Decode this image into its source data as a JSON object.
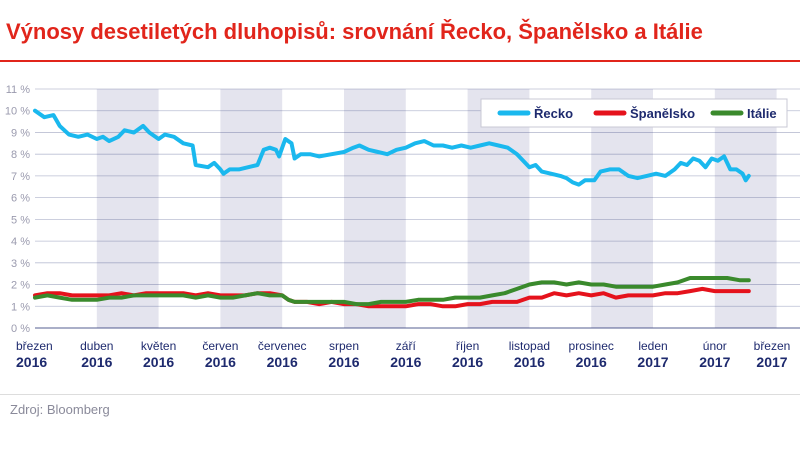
{
  "title": "Výnosy desetiletých dluhopisů: srovnání Řecko, Španělsko a Itálie",
  "source": "Zdroj: Bloomberg",
  "colors": {
    "title": "#e1251b",
    "greece": "#1ab8ee",
    "spain": "#e5121c",
    "italy": "#3a8a2c",
    "axis_text": "#1e2a6e",
    "band": "#e4e4ee"
  },
  "chart_data": {
    "type": "line",
    "title": "Výnosy desetiletých dluhopisů: srovnání Řecko, Španělsko a Itálie",
    "xlabel": "",
    "ylabel": "",
    "ylim": [
      0,
      11
    ],
    "yticks": [
      "0 %",
      "1 %",
      "2 %",
      "3 %",
      "4 %",
      "5 %",
      "6 %",
      "7 %",
      "8 %",
      "9 %",
      "10 %",
      "11 %"
    ],
    "xlim": [
      0,
      12.9
    ],
    "x_unit": "months since start of March 2016",
    "months": [
      {
        "month": "březen",
        "year": "2016"
      },
      {
        "month": "duben",
        "year": "2016"
      },
      {
        "month": "květen",
        "year": "2016"
      },
      {
        "month": "červen",
        "year": "2016"
      },
      {
        "month": "červenec",
        "year": "2016"
      },
      {
        "month": "srpen",
        "year": "2016"
      },
      {
        "month": "září",
        "year": "2016"
      },
      {
        "month": "říjen",
        "year": "2016"
      },
      {
        "month": "listopad",
        "year": "2016"
      },
      {
        "month": "prosinec",
        "year": "2016"
      },
      {
        "month": "leden",
        "year": "2017"
      },
      {
        "month": "únor",
        "year": "2017"
      },
      {
        "month": "březen",
        "year": "2017"
      }
    ],
    "grid": true,
    "legend_position": "top-right",
    "series": [
      {
        "name": "Řecko",
        "color": "#1ab8ee",
        "points": [
          [
            0.0,
            10.0
          ],
          [
            0.15,
            9.7
          ],
          [
            0.3,
            9.8
          ],
          [
            0.4,
            9.3
          ],
          [
            0.55,
            8.9
          ],
          [
            0.7,
            8.8
          ],
          [
            0.85,
            8.9
          ],
          [
            1.0,
            8.7
          ],
          [
            1.1,
            8.8
          ],
          [
            1.2,
            8.6
          ],
          [
            1.35,
            8.8
          ],
          [
            1.45,
            9.1
          ],
          [
            1.6,
            9.0
          ],
          [
            1.75,
            9.3
          ],
          [
            1.85,
            9.0
          ],
          [
            2.0,
            8.7
          ],
          [
            2.1,
            8.9
          ],
          [
            2.25,
            8.8
          ],
          [
            2.4,
            8.5
          ],
          [
            2.55,
            8.4
          ],
          [
            2.6,
            7.5
          ],
          [
            2.8,
            7.4
          ],
          [
            2.9,
            7.6
          ],
          [
            3.0,
            7.3
          ],
          [
            3.05,
            7.1
          ],
          [
            3.15,
            7.3
          ],
          [
            3.3,
            7.3
          ],
          [
            3.45,
            7.4
          ],
          [
            3.6,
            7.5
          ],
          [
            3.7,
            8.2
          ],
          [
            3.8,
            8.3
          ],
          [
            3.9,
            8.2
          ],
          [
            3.95,
            7.9
          ],
          [
            4.05,
            8.7
          ],
          [
            4.15,
            8.5
          ],
          [
            4.2,
            7.8
          ],
          [
            4.3,
            8.0
          ],
          [
            4.45,
            8.0
          ],
          [
            4.6,
            7.9
          ],
          [
            4.8,
            8.0
          ],
          [
            5.0,
            8.1
          ],
          [
            5.15,
            8.3
          ],
          [
            5.25,
            8.4
          ],
          [
            5.4,
            8.2
          ],
          [
            5.55,
            8.1
          ],
          [
            5.7,
            8.0
          ],
          [
            5.85,
            8.2
          ],
          [
            6.0,
            8.3
          ],
          [
            6.15,
            8.5
          ],
          [
            6.3,
            8.6
          ],
          [
            6.45,
            8.4
          ],
          [
            6.6,
            8.4
          ],
          [
            6.75,
            8.3
          ],
          [
            6.9,
            8.4
          ],
          [
            7.05,
            8.3
          ],
          [
            7.2,
            8.4
          ],
          [
            7.35,
            8.5
          ],
          [
            7.5,
            8.4
          ],
          [
            7.65,
            8.3
          ],
          [
            7.8,
            8.0
          ],
          [
            7.9,
            7.7
          ],
          [
            8.0,
            7.4
          ],
          [
            8.1,
            7.5
          ],
          [
            8.2,
            7.2
          ],
          [
            8.35,
            7.1
          ],
          [
            8.5,
            7.0
          ],
          [
            8.6,
            6.9
          ],
          [
            8.7,
            6.7
          ],
          [
            8.8,
            6.6
          ],
          [
            8.9,
            6.8
          ],
          [
            9.05,
            6.8
          ],
          [
            9.15,
            7.2
          ],
          [
            9.3,
            7.3
          ],
          [
            9.45,
            7.3
          ],
          [
            9.6,
            7.0
          ],
          [
            9.75,
            6.9
          ],
          [
            9.9,
            7.0
          ],
          [
            10.05,
            7.1
          ],
          [
            10.2,
            7.0
          ],
          [
            10.35,
            7.3
          ],
          [
            10.45,
            7.6
          ],
          [
            10.55,
            7.5
          ],
          [
            10.65,
            7.8
          ],
          [
            10.75,
            7.7
          ],
          [
            10.85,
            7.4
          ],
          [
            10.95,
            7.8
          ],
          [
            11.05,
            7.7
          ],
          [
            11.15,
            7.9
          ],
          [
            11.25,
            7.3
          ],
          [
            11.35,
            7.3
          ],
          [
            11.45,
            7.1
          ],
          [
            11.5,
            6.8
          ],
          [
            11.55,
            7.0
          ]
        ]
      },
      {
        "name": "Španělsko",
        "color": "#e5121c",
        "points": [
          [
            0.0,
            1.5
          ],
          [
            0.2,
            1.6
          ],
          [
            0.4,
            1.6
          ],
          [
            0.6,
            1.5
          ],
          [
            0.8,
            1.5
          ],
          [
            1.0,
            1.5
          ],
          [
            1.2,
            1.5
          ],
          [
            1.4,
            1.6
          ],
          [
            1.6,
            1.5
          ],
          [
            1.8,
            1.6
          ],
          [
            2.0,
            1.6
          ],
          [
            2.2,
            1.6
          ],
          [
            2.4,
            1.6
          ],
          [
            2.6,
            1.5
          ],
          [
            2.8,
            1.6
          ],
          [
            3.0,
            1.5
          ],
          [
            3.2,
            1.5
          ],
          [
            3.4,
            1.5
          ],
          [
            3.6,
            1.6
          ],
          [
            3.8,
            1.6
          ],
          [
            4.0,
            1.5
          ],
          [
            4.1,
            1.3
          ],
          [
            4.2,
            1.2
          ],
          [
            4.4,
            1.2
          ],
          [
            4.6,
            1.1
          ],
          [
            4.8,
            1.2
          ],
          [
            5.0,
            1.1
          ],
          [
            5.2,
            1.1
          ],
          [
            5.4,
            1.0
          ],
          [
            5.6,
            1.0
          ],
          [
            5.8,
            1.0
          ],
          [
            6.0,
            1.0
          ],
          [
            6.2,
            1.1
          ],
          [
            6.4,
            1.1
          ],
          [
            6.6,
            1.0
          ],
          [
            6.8,
            1.0
          ],
          [
            7.0,
            1.1
          ],
          [
            7.2,
            1.1
          ],
          [
            7.4,
            1.2
          ],
          [
            7.6,
            1.2
          ],
          [
            7.8,
            1.2
          ],
          [
            8.0,
            1.4
          ],
          [
            8.2,
            1.4
          ],
          [
            8.4,
            1.6
          ],
          [
            8.6,
            1.5
          ],
          [
            8.8,
            1.6
          ],
          [
            9.0,
            1.5
          ],
          [
            9.2,
            1.6
          ],
          [
            9.4,
            1.4
          ],
          [
            9.6,
            1.5
          ],
          [
            9.8,
            1.5
          ],
          [
            10.0,
            1.5
          ],
          [
            10.2,
            1.6
          ],
          [
            10.4,
            1.6
          ],
          [
            10.6,
            1.7
          ],
          [
            10.8,
            1.8
          ],
          [
            11.0,
            1.7
          ],
          [
            11.2,
            1.7
          ],
          [
            11.4,
            1.7
          ],
          [
            11.55,
            1.7
          ]
        ]
      },
      {
        "name": "Itálie",
        "color": "#3a8a2c",
        "points": [
          [
            0.0,
            1.4
          ],
          [
            0.2,
            1.5
          ],
          [
            0.4,
            1.4
          ],
          [
            0.6,
            1.3
          ],
          [
            0.8,
            1.3
          ],
          [
            1.0,
            1.3
          ],
          [
            1.2,
            1.4
          ],
          [
            1.4,
            1.4
          ],
          [
            1.6,
            1.5
          ],
          [
            1.8,
            1.5
          ],
          [
            2.0,
            1.5
          ],
          [
            2.2,
            1.5
          ],
          [
            2.4,
            1.5
          ],
          [
            2.6,
            1.4
          ],
          [
            2.8,
            1.5
          ],
          [
            3.0,
            1.4
          ],
          [
            3.2,
            1.4
          ],
          [
            3.4,
            1.5
          ],
          [
            3.6,
            1.6
          ],
          [
            3.8,
            1.5
          ],
          [
            4.0,
            1.5
          ],
          [
            4.1,
            1.3
          ],
          [
            4.2,
            1.2
          ],
          [
            4.4,
            1.2
          ],
          [
            4.6,
            1.2
          ],
          [
            4.8,
            1.2
          ],
          [
            5.0,
            1.2
          ],
          [
            5.2,
            1.1
          ],
          [
            5.4,
            1.1
          ],
          [
            5.6,
            1.2
          ],
          [
            5.8,
            1.2
          ],
          [
            6.0,
            1.2
          ],
          [
            6.2,
            1.3
          ],
          [
            6.4,
            1.3
          ],
          [
            6.6,
            1.3
          ],
          [
            6.8,
            1.4
          ],
          [
            7.0,
            1.4
          ],
          [
            7.2,
            1.4
          ],
          [
            7.4,
            1.5
          ],
          [
            7.6,
            1.6
          ],
          [
            7.8,
            1.8
          ],
          [
            8.0,
            2.0
          ],
          [
            8.2,
            2.1
          ],
          [
            8.4,
            2.1
          ],
          [
            8.6,
            2.0
          ],
          [
            8.8,
            2.1
          ],
          [
            9.0,
            2.0
          ],
          [
            9.2,
            2.0
          ],
          [
            9.4,
            1.9
          ],
          [
            9.6,
            1.9
          ],
          [
            9.8,
            1.9
          ],
          [
            10.0,
            1.9
          ],
          [
            10.2,
            2.0
          ],
          [
            10.4,
            2.1
          ],
          [
            10.6,
            2.3
          ],
          [
            10.8,
            2.3
          ],
          [
            11.0,
            2.3
          ],
          [
            11.2,
            2.3
          ],
          [
            11.4,
            2.2
          ],
          [
            11.55,
            2.2
          ]
        ]
      }
    ]
  }
}
